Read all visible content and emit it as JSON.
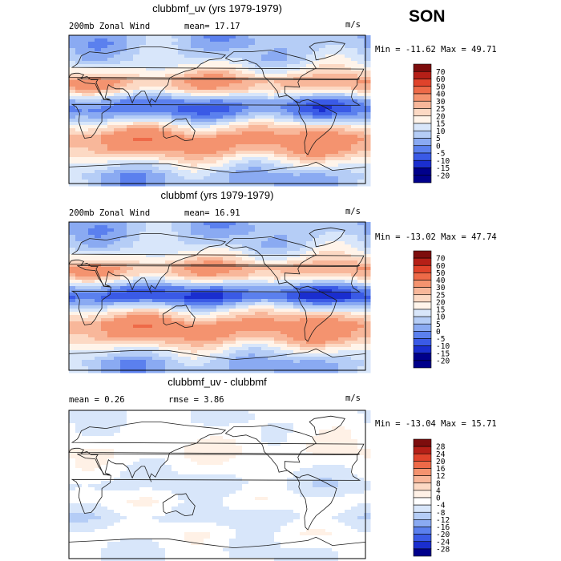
{
  "season": "SON",
  "colors": {
    "scale_main": [
      "#00008b",
      "#1a2ecf",
      "#3a5ae6",
      "#5b80ee",
      "#8aaaf2",
      "#b5cdf6",
      "#d8e6fa",
      "#fff4ea",
      "#fcd9c4",
      "#f8b79a",
      "#f4936f",
      "#ee6a48",
      "#e0432b",
      "#b51f17",
      "#7d0d0d"
    ],
    "scale_diff": [
      "#00008b",
      "#1a2ecf",
      "#3a5ae6",
      "#5b80ee",
      "#8aaaf2",
      "#b5cdf6",
      "#d8e6fa",
      "#ffffff",
      "#fff1e6",
      "#fcd9c4",
      "#f8b79a",
      "#f4936f",
      "#ee6a48",
      "#e0432b",
      "#b51f17",
      "#7d0d0d"
    ]
  },
  "chart_data": [
    {
      "type": "heatmap",
      "title": "clubbmf_uv (yrs 1979-1979)",
      "variable": "200mb Zonal Wind",
      "stat_text": "mean=   17.17",
      "units": "m/s",
      "range_text": "Min = -11.62 Max =  49.71",
      "min": -11.62,
      "max": 49.71,
      "mean": 17.17,
      "colorbar_levels": [
        "70",
        "60",
        "50",
        "40",
        "30",
        "25",
        "20",
        "15",
        "10",
        "5",
        "0",
        "-5",
        "-10",
        "-15",
        "-20"
      ],
      "colorbar_values": [
        70,
        60,
        50,
        40,
        30,
        25,
        20,
        15,
        10,
        5,
        0,
        -5,
        -10,
        -15,
        -20
      ],
      "bands": [
        {
          "lat": 80,
          "u": 5
        },
        {
          "lat": 60,
          "u": 10
        },
        {
          "lat": 45,
          "u": 20
        },
        {
          "lat": 35,
          "u": 30
        },
        {
          "lat": 25,
          "u": 25
        },
        {
          "lat": 10,
          "u": 0
        },
        {
          "lat": 0,
          "u": -5
        },
        {
          "lat": -10,
          "u": 5
        },
        {
          "lat": -20,
          "u": 20
        },
        {
          "lat": -35,
          "u": 35
        },
        {
          "lat": -50,
          "u": 30
        },
        {
          "lat": -65,
          "u": 15
        },
        {
          "lat": -80,
          "u": 5
        }
      ]
    },
    {
      "type": "heatmap",
      "title": "clubbmf (yrs 1979-1979)",
      "variable": "200mb Zonal Wind",
      "stat_text": "mean=   16.91",
      "units": "m/s",
      "range_text": "Min = -13.02 Max =  47.74",
      "min": -13.02,
      "max": 47.74,
      "mean": 16.91,
      "colorbar_levels": [
        "70",
        "60",
        "50",
        "40",
        "30",
        "25",
        "20",
        "15",
        "10",
        "5",
        "0",
        "-5",
        "-10",
        "-15",
        "-20"
      ],
      "colorbar_values": [
        70,
        60,
        50,
        40,
        30,
        25,
        20,
        15,
        10,
        5,
        0,
        -5,
        -10,
        -15,
        -20
      ],
      "bands": [
        {
          "lat": 80,
          "u": 5
        },
        {
          "lat": 60,
          "u": 10
        },
        {
          "lat": 45,
          "u": 20
        },
        {
          "lat": 35,
          "u": 30
        },
        {
          "lat": 25,
          "u": 25
        },
        {
          "lat": 10,
          "u": 0
        },
        {
          "lat": 0,
          "u": -10
        },
        {
          "lat": -10,
          "u": 5
        },
        {
          "lat": -20,
          "u": 20
        },
        {
          "lat": -35,
          "u": 35
        },
        {
          "lat": -50,
          "u": 30
        },
        {
          "lat": -65,
          "u": 15
        },
        {
          "lat": -80,
          "u": 5
        }
      ]
    },
    {
      "type": "heatmap",
      "title": "clubbmf_uv - clubbmf",
      "stat_text": "mean =    0.26",
      "stat2_text": "rmse =    3.86",
      "units": "m/s",
      "range_text": "Min = -13.04 Max =  15.71",
      "min": -13.04,
      "max": 15.71,
      "mean": 0.26,
      "rmse": 3.86,
      "colorbar_levels": [
        "28",
        "24",
        "20",
        "16",
        "12",
        "8",
        "4",
        "0",
        "-4",
        "-8",
        "-12",
        "-16",
        "-20",
        "-24",
        "-28"
      ],
      "colorbar_values": [
        28,
        24,
        20,
        16,
        12,
        8,
        4,
        0,
        -4,
        -8,
        -12,
        -16,
        -20,
        -24,
        -28
      ],
      "bands": [
        {
          "lat": 80,
          "u": 0
        },
        {
          "lat": 60,
          "u": 2
        },
        {
          "lat": 40,
          "u": 4
        },
        {
          "lat": 25,
          "u": 2
        },
        {
          "lat": 0,
          "u": -2
        },
        {
          "lat": -20,
          "u": 2
        },
        {
          "lat": -40,
          "u": -2
        },
        {
          "lat": -60,
          "u": 2
        },
        {
          "lat": -80,
          "u": 0
        }
      ]
    }
  ]
}
